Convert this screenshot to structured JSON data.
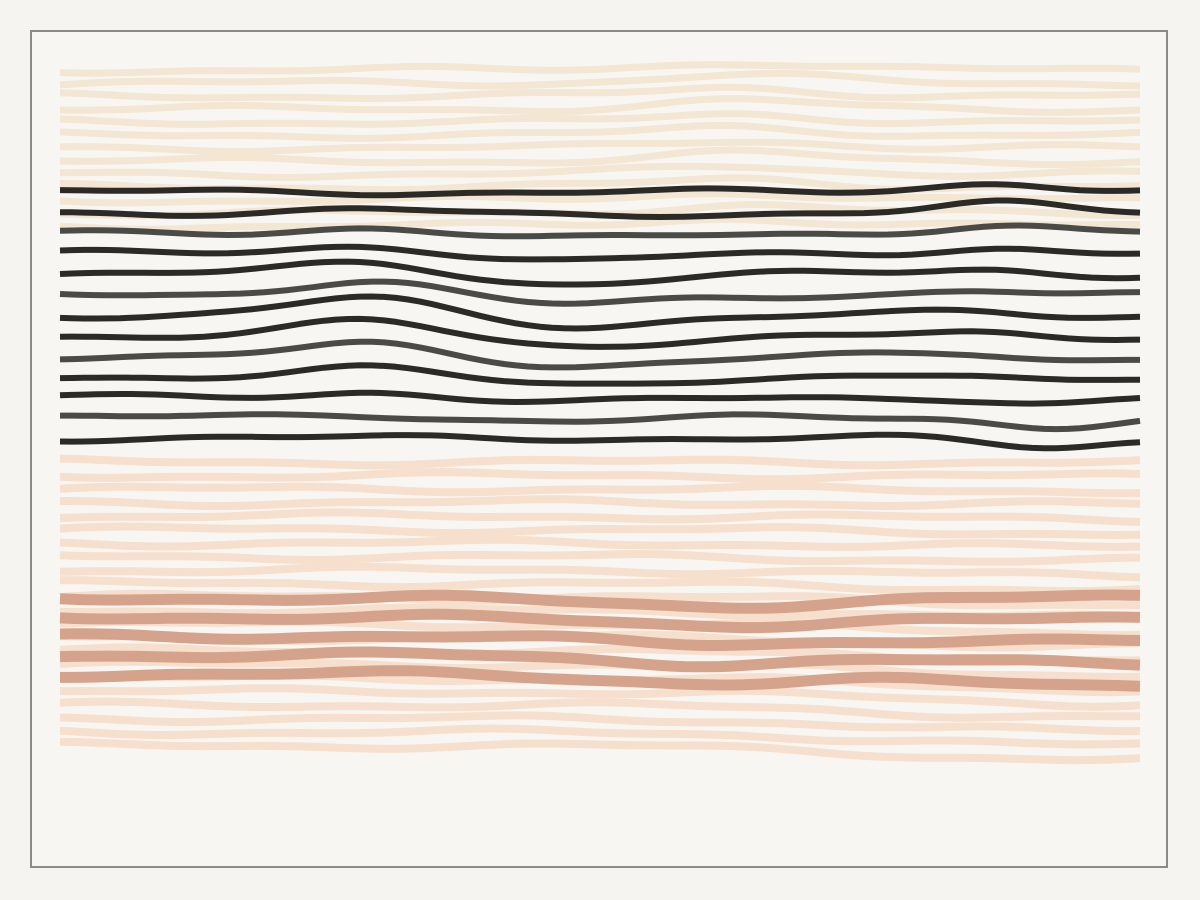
{
  "artwork": {
    "background": "#f8f6f3",
    "frame_color": "#8c8a87",
    "palette": {
      "cream": "#f3e6d2",
      "dark": "#2b2a26",
      "gray": "#4a4b47",
      "peach": "#f6dfcc",
      "rust": "#d5a38b"
    }
  }
}
